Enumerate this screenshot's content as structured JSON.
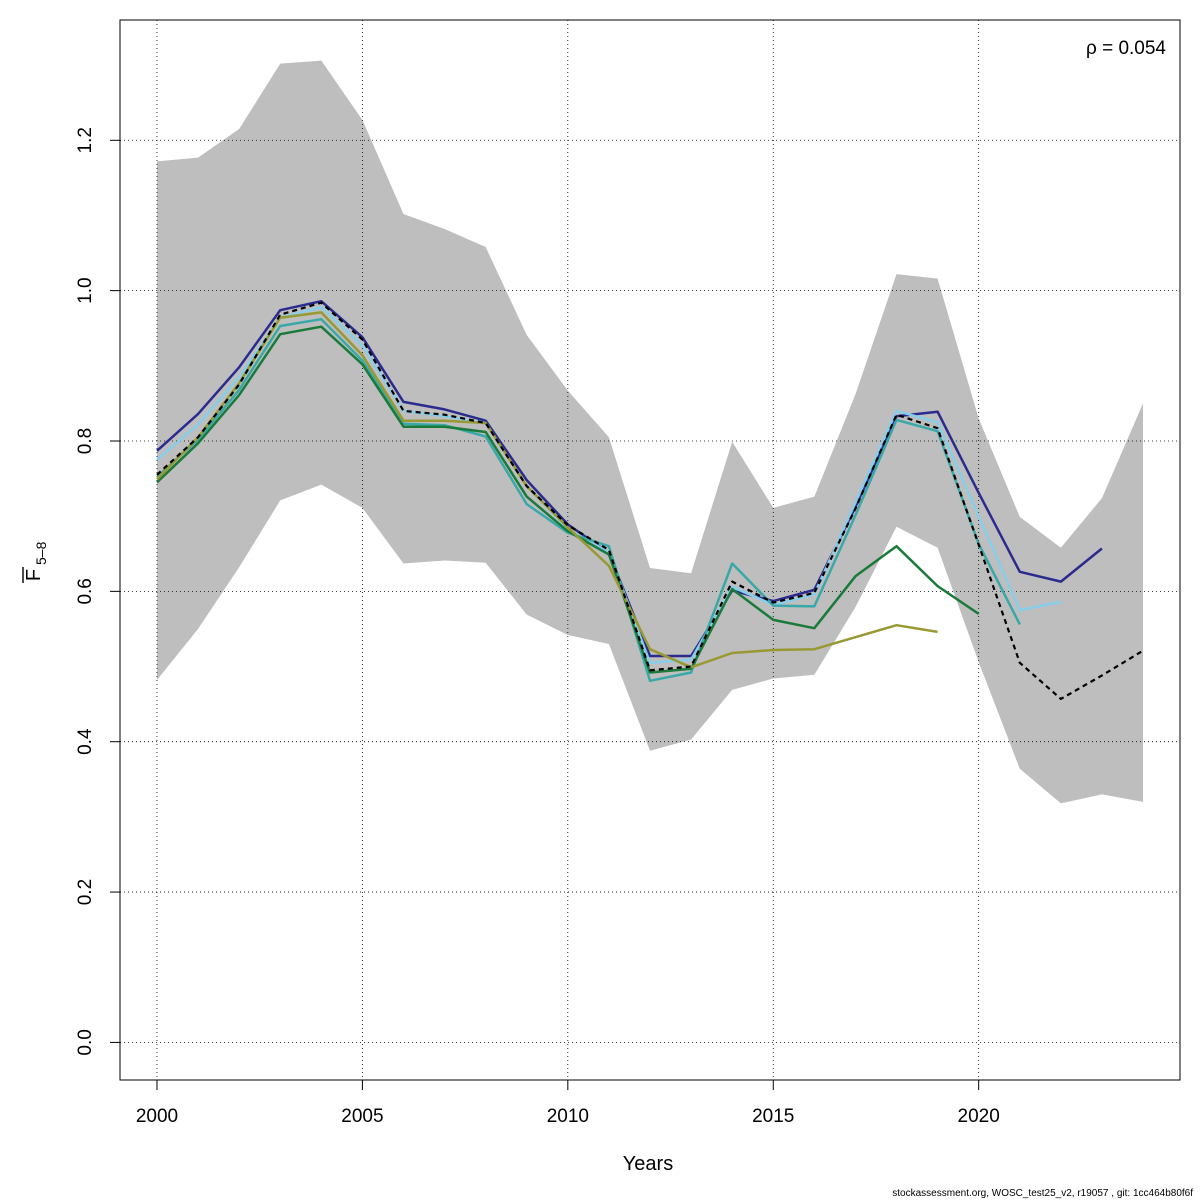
{
  "chart_data": {
    "type": "line",
    "title": "",
    "xlabel": "Years",
    "ylabel_main": "F",
    "ylabel_sub": "5–8",
    "xlim": [
      1999.1,
      2024.9
    ],
    "ylim": [
      -0.05,
      1.36
    ],
    "x_ticks": [
      2000,
      2005,
      2010,
      2015,
      2020
    ],
    "y_ticks": [
      0.0,
      0.2,
      0.4,
      0.6,
      0.8,
      1.0,
      1.2
    ],
    "x_tick_labels": [
      "2000",
      "2005",
      "2010",
      "2015",
      "2020"
    ],
    "y_tick_labels": [
      "0.0",
      "0.2",
      "0.4",
      "0.6",
      "0.8",
      "1.0",
      "1.2"
    ],
    "grid": true,
    "annotation": "ρ = 0.054",
    "footer": "stockassessment.org, WOSC_test25_v2, r19057 , git: 1cc464b80f6f",
    "confidence_band": {
      "color": "#bebebe",
      "x": [
        2000,
        2001,
        2002,
        2003,
        2004,
        2005,
        2006,
        2007,
        2008,
        2009,
        2010,
        2011,
        2012,
        2013,
        2014,
        2015,
        2016,
        2017,
        2018,
        2019,
        2020,
        2021,
        2022,
        2023,
        2024
      ],
      "upper": [
        1.172,
        1.177,
        1.215,
        1.302,
        1.306,
        1.227,
        1.102,
        1.082,
        1.058,
        0.941,
        0.867,
        0.805,
        0.631,
        0.624,
        0.799,
        0.711,
        0.726,
        0.862,
        1.022,
        1.016,
        0.83,
        0.699,
        0.658,
        0.724,
        0.85
      ],
      "lower": [
        0.482,
        0.55,
        0.632,
        0.721,
        0.742,
        0.711,
        0.637,
        0.641,
        0.638,
        0.569,
        0.542,
        0.53,
        0.388,
        0.403,
        0.469,
        0.484,
        0.489,
        0.579,
        0.686,
        0.658,
        0.506,
        0.364,
        0.318,
        0.33,
        0.32
      ]
    },
    "series": [
      {
        "color": "#2b2b8f",
        "width": 2.5,
        "dash": "",
        "x": [
          2000,
          2001,
          2002,
          2003,
          2004,
          2005,
          2006,
          2007,
          2008,
          2009,
          2010,
          2011,
          2012,
          2013,
          2014,
          2015,
          2016,
          2017,
          2018,
          2019,
          2020,
          2021,
          2022,
          2023
        ],
        "y": [
          0.787,
          0.836,
          0.898,
          0.974,
          0.986,
          0.938,
          0.852,
          0.842,
          0.827,
          0.748,
          0.689,
          0.651,
          0.514,
          0.514,
          0.601,
          0.587,
          0.602,
          0.712,
          0.833,
          0.839,
          0.731,
          0.626,
          0.613,
          0.657
        ]
      },
      {
        "color": "#87ceeb",
        "width": 2.5,
        "dash": "",
        "x": [
          2000,
          2001,
          2002,
          2003,
          2004,
          2005,
          2006,
          2007,
          2008,
          2009,
          2010,
          2011,
          2012,
          2013,
          2014,
          2015,
          2016,
          2017,
          2018,
          2019,
          2020,
          2021,
          2022
        ],
        "y": [
          0.775,
          0.822,
          0.885,
          0.964,
          0.978,
          0.927,
          0.84,
          0.833,
          0.824,
          0.74,
          0.683,
          0.652,
          0.505,
          0.509,
          0.606,
          0.582,
          0.596,
          0.718,
          0.84,
          0.825,
          0.7,
          0.575,
          0.586
        ]
      },
      {
        "color": "#3aa8a8",
        "width": 2.5,
        "dash": "",
        "x": [
          2000,
          2001,
          2002,
          2003,
          2004,
          2005,
          2006,
          2007,
          2008,
          2009,
          2010,
          2011,
          2012,
          2013,
          2014,
          2015,
          2016,
          2017,
          2018,
          2019,
          2020,
          2021
        ],
        "y": [
          0.752,
          0.802,
          0.868,
          0.953,
          0.962,
          0.907,
          0.823,
          0.821,
          0.806,
          0.716,
          0.678,
          0.66,
          0.481,
          0.492,
          0.637,
          0.581,
          0.58,
          0.701,
          0.828,
          0.813,
          0.663,
          0.556
        ]
      },
      {
        "color": "#1a7a3a",
        "width": 2.5,
        "dash": "",
        "x": [
          2000,
          2001,
          2002,
          2003,
          2004,
          2005,
          2006,
          2007,
          2008,
          2009,
          2010,
          2011,
          2012,
          2013,
          2014,
          2015,
          2016,
          2017,
          2018,
          2019,
          2020
        ],
        "y": [
          0.745,
          0.797,
          0.861,
          0.942,
          0.952,
          0.902,
          0.819,
          0.819,
          0.812,
          0.726,
          0.68,
          0.649,
          0.492,
          0.497,
          0.603,
          0.562,
          0.551,
          0.62,
          0.66,
          0.607,
          0.57
        ]
      },
      {
        "color": "#999933",
        "width": 2.5,
        "dash": "",
        "x": [
          2000,
          2001,
          2002,
          2003,
          2004,
          2005,
          2006,
          2007,
          2008,
          2009,
          2010,
          2011,
          2012,
          2013,
          2014,
          2015,
          2016,
          2017,
          2018,
          2019
        ],
        "y": [
          0.749,
          0.805,
          0.877,
          0.964,
          0.971,
          0.914,
          0.827,
          0.827,
          0.824,
          0.74,
          0.685,
          0.634,
          0.523,
          0.499,
          0.518,
          0.522,
          0.523,
          0.539,
          0.555,
          0.546
        ]
      },
      {
        "color": "#000000",
        "width": 2.2,
        "dash": "5,4",
        "x": [
          2000,
          2001,
          2002,
          2003,
          2004,
          2005,
          2006,
          2007,
          2008,
          2009,
          2010,
          2011,
          2012,
          2013,
          2014,
          2015,
          2016,
          2017,
          2018,
          2019,
          2020,
          2021,
          2022,
          2023,
          2024
        ],
        "y": [
          0.755,
          0.805,
          0.875,
          0.968,
          0.984,
          0.935,
          0.84,
          0.835,
          0.824,
          0.74,
          0.688,
          0.655,
          0.495,
          0.5,
          0.613,
          0.585,
          0.598,
          0.71,
          0.835,
          0.817,
          0.662,
          0.505,
          0.457,
          0.488,
          0.521
        ]
      }
    ]
  }
}
